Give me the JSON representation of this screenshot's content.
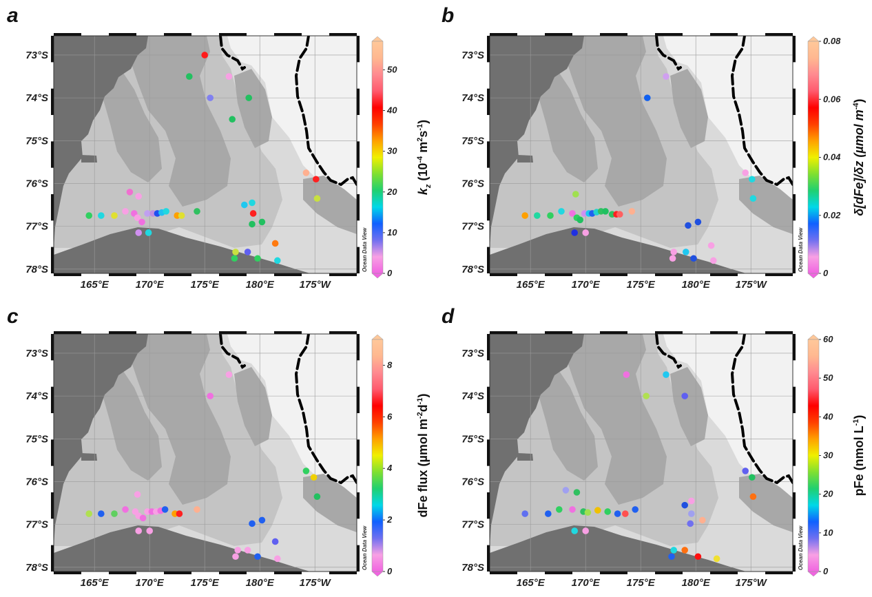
{
  "map": {
    "lat_labels": [
      "73°S",
      "74°S",
      "75°S",
      "76°S",
      "77°S",
      "78°S"
    ],
    "lon_labels": [
      "165°E",
      "170°E",
      "175°E",
      "180°E",
      "175°W"
    ],
    "watermark": "Ocean Data View"
  },
  "colors": {
    "land": "#707070",
    "shelf_dark": "#a8a8a8",
    "shelf_mid": "#c4c4c4",
    "shelf_light": "#dadada",
    "ocean": "#f2f2f2",
    "iceline": "#000000"
  },
  "colorbar_gradient": [
    "#f064e0",
    "#f8a0e4",
    "#7070f0",
    "#1060ff",
    "#00d8e8",
    "#20d070",
    "#80e030",
    "#f0f000",
    "#ffa000",
    "#ff4000",
    "#ff0000",
    "#ff5a6e",
    "#ff8a90",
    "#ffb890",
    "#ffc89a"
  ],
  "panels": [
    {
      "id": "a",
      "label": "a",
      "colorbar": {
        "title_text": "k",
        "title_sub": "z",
        "title_rest": " (10",
        "title_sup1": "-4",
        "title_mid": " m",
        "title_sup2": "2",
        "title_end": "s",
        "title_sup3": "-1",
        "title_close": ")",
        "ticks": [
          "0",
          "10",
          "20",
          "30",
          "40",
          "50"
        ],
        "tick_values": [
          0,
          10,
          20,
          30,
          40,
          50
        ],
        "min": 0,
        "max": 57
      },
      "stations": [
        {
          "lon": 175.0,
          "lat": -73.0,
          "color": "#ff1a1a"
        },
        {
          "lon": 173.6,
          "lat": -73.5,
          "color": "#22c060"
        },
        {
          "lon": 177.2,
          "lat": -73.5,
          "color": "#f8a0e4"
        },
        {
          "lon": 175.5,
          "lat": -74.0,
          "color": "#8080f0"
        },
        {
          "lon": 179.0,
          "lat": -74.0,
          "color": "#22c060"
        },
        {
          "lon": 177.5,
          "lat": -74.5,
          "color": "#22c060"
        },
        {
          "lon": 184.2,
          "lat": -75.75,
          "color": "#ffb090"
        },
        {
          "lon": 185.1,
          "lat": -75.9,
          "color": "#ff2020"
        },
        {
          "lon": 185.2,
          "lat": -76.35,
          "color": "#c8e040"
        },
        {
          "lon": 168.2,
          "lat": -76.2,
          "color": "#f070d0"
        },
        {
          "lon": 169.0,
          "lat": -76.3,
          "color": "#f8a0e4"
        },
        {
          "lon": 164.5,
          "lat": -76.75,
          "color": "#30d060"
        },
        {
          "lon": 165.6,
          "lat": -76.75,
          "color": "#20d8e0"
        },
        {
          "lon": 166.8,
          "lat": -76.75,
          "color": "#e0e030"
        },
        {
          "lon": 167.8,
          "lat": -76.65,
          "color": "#f8a0e4"
        },
        {
          "lon": 168.6,
          "lat": -76.7,
          "color": "#f070e0"
        },
        {
          "lon": 168.9,
          "lat": -76.8,
          "color": "#f8a0e4"
        },
        {
          "lon": 169.3,
          "lat": -76.9,
          "color": "#f070e0"
        },
        {
          "lon": 169.8,
          "lat": -76.7,
          "color": "#c0a0f0"
        },
        {
          "lon": 170.3,
          "lat": -76.7,
          "color": "#c090e0"
        },
        {
          "lon": 170.7,
          "lat": -76.7,
          "color": "#2050f0"
        },
        {
          "lon": 171.1,
          "lat": -76.68,
          "color": "#20c0f0"
        },
        {
          "lon": 171.5,
          "lat": -76.65,
          "color": "#20d8e0"
        },
        {
          "lon": 172.5,
          "lat": -76.75,
          "color": "#ffa000"
        },
        {
          "lon": 172.9,
          "lat": -76.75,
          "color": "#e0e030"
        },
        {
          "lon": 174.3,
          "lat": -76.65,
          "color": "#30c060"
        },
        {
          "lon": 169.0,
          "lat": -77.15,
          "color": "#d090f0"
        },
        {
          "lon": 169.9,
          "lat": -77.15,
          "color": "#20d8e0"
        },
        {
          "lon": 178.6,
          "lat": -76.5,
          "color": "#20c8f0"
        },
        {
          "lon": 179.3,
          "lat": -76.45,
          "color": "#20d8e0"
        },
        {
          "lon": 179.4,
          "lat": -76.7,
          "color": "#ff2020"
        },
        {
          "lon": 179.3,
          "lat": -76.95,
          "color": "#22c060"
        },
        {
          "lon": 180.2,
          "lat": -76.9,
          "color": "#22c060"
        },
        {
          "lon": 181.4,
          "lat": -77.4,
          "color": "#ff7a10"
        },
        {
          "lon": 177.8,
          "lat": -77.6,
          "color": "#c8e040"
        },
        {
          "lon": 178.9,
          "lat": -77.6,
          "color": "#6060f0"
        },
        {
          "lon": 177.7,
          "lat": -77.75,
          "color": "#30d060"
        },
        {
          "lon": 179.8,
          "lat": -77.75,
          "color": "#30d060"
        },
        {
          "lon": 181.6,
          "lat": -77.8,
          "color": "#20d8e0"
        }
      ]
    },
    {
      "id": "b",
      "label": "b",
      "colorbar": {
        "title_text": "δ[dFe]/δz (µmol m",
        "title_sup1": "-4",
        "title_close": ")",
        "ticks": [
          "0",
          "0.02",
          "0.04",
          "0.06",
          "0.08"
        ],
        "tick_values": [
          0,
          0.02,
          0.04,
          0.06,
          0.08
        ],
        "min": 0,
        "max": 0.08
      },
      "stations": [
        {
          "lon": 177.3,
          "lat": -73.5,
          "color": "#d0a0f0"
        },
        {
          "lon": 175.6,
          "lat": -74.0,
          "color": "#1060f0"
        },
        {
          "lon": 184.5,
          "lat": -75.75,
          "color": "#f8a0e4"
        },
        {
          "lon": 185.1,
          "lat": -75.9,
          "color": "#20d8e0"
        },
        {
          "lon": 185.2,
          "lat": -76.35,
          "color": "#20d8e0"
        },
        {
          "lon": 169.1,
          "lat": -76.25,
          "color": "#a0e050"
        },
        {
          "lon": 164.5,
          "lat": -76.75,
          "color": "#ffa000"
        },
        {
          "lon": 165.6,
          "lat": -76.75,
          "color": "#20d8a0"
        },
        {
          "lon": 166.8,
          "lat": -76.75,
          "color": "#30d060"
        },
        {
          "lon": 167.8,
          "lat": -76.65,
          "color": "#20d8e0"
        },
        {
          "lon": 168.8,
          "lat": -76.7,
          "color": "#f070e0"
        },
        {
          "lon": 169.2,
          "lat": -76.8,
          "color": "#30d060"
        },
        {
          "lon": 169.5,
          "lat": -76.85,
          "color": "#20c060"
        },
        {
          "lon": 169.9,
          "lat": -76.7,
          "color": "#d090f0"
        },
        {
          "lon": 170.3,
          "lat": -76.7,
          "color": "#20c8f0"
        },
        {
          "lon": 170.6,
          "lat": -76.7,
          "color": "#2060f0"
        },
        {
          "lon": 171.0,
          "lat": -76.67,
          "color": "#20d0d0"
        },
        {
          "lon": 171.4,
          "lat": -76.65,
          "color": "#30c060"
        },
        {
          "lon": 171.8,
          "lat": -76.65,
          "color": "#20c060"
        },
        {
          "lon": 172.4,
          "lat": -76.72,
          "color": "#30c060"
        },
        {
          "lon": 172.8,
          "lat": -76.72,
          "color": "#ff2020"
        },
        {
          "lon": 173.1,
          "lat": -76.72,
          "color": "#ff6060"
        },
        {
          "lon": 174.2,
          "lat": -76.65,
          "color": "#ffb090"
        },
        {
          "lon": 169.0,
          "lat": -77.15,
          "color": "#2030e0"
        },
        {
          "lon": 170.0,
          "lat": -77.15,
          "color": "#f8a0e4"
        },
        {
          "lon": 179.3,
          "lat": -76.98,
          "color": "#2050e0"
        },
        {
          "lon": 180.2,
          "lat": -76.9,
          "color": "#2050e0"
        },
        {
          "lon": 181.4,
          "lat": -77.45,
          "color": "#f8a0e4"
        },
        {
          "lon": 178.0,
          "lat": -77.6,
          "color": "#f8a0e4"
        },
        {
          "lon": 179.1,
          "lat": -77.6,
          "color": "#20c8f0"
        },
        {
          "lon": 177.9,
          "lat": -77.75,
          "color": "#f8a0e4"
        },
        {
          "lon": 179.8,
          "lat": -77.75,
          "color": "#2050e0"
        },
        {
          "lon": 181.6,
          "lat": -77.8,
          "color": "#f8a0e4"
        }
      ]
    },
    {
      "id": "c",
      "label": "c",
      "colorbar": {
        "title_text": "dFe flux (µmol m",
        "title_sup1": "-2",
        "title_mid": "d",
        "title_sup2": "-1",
        "title_close": ")",
        "ticks": [
          "0",
          "2",
          "4",
          "6",
          "8"
        ],
        "tick_values": [
          0,
          2,
          4,
          6,
          8
        ],
        "min": 0,
        "max": 9
      },
      "stations": [
        {
          "lon": 177.2,
          "lat": -73.5,
          "color": "#f8a0e4"
        },
        {
          "lon": 175.5,
          "lat": -74.0,
          "color": "#f070e0"
        },
        {
          "lon": 184.2,
          "lat": -75.75,
          "color": "#30d060"
        },
        {
          "lon": 184.9,
          "lat": -75.9,
          "color": "#f0d000"
        },
        {
          "lon": 185.2,
          "lat": -76.35,
          "color": "#22c060"
        },
        {
          "lon": 168.9,
          "lat": -76.3,
          "color": "#f8a0e4"
        },
        {
          "lon": 164.5,
          "lat": -76.75,
          "color": "#b0e050"
        },
        {
          "lon": 165.6,
          "lat": -76.75,
          "color": "#2060f0"
        },
        {
          "lon": 166.8,
          "lat": -76.75,
          "color": "#60d060"
        },
        {
          "lon": 167.8,
          "lat": -76.65,
          "color": "#f070e0"
        },
        {
          "lon": 168.7,
          "lat": -76.7,
          "color": "#f8a0e4"
        },
        {
          "lon": 169.0,
          "lat": -76.8,
          "color": "#f8a0e4"
        },
        {
          "lon": 169.4,
          "lat": -76.85,
          "color": "#f070e0"
        },
        {
          "lon": 169.8,
          "lat": -76.7,
          "color": "#f8a0e4"
        },
        {
          "lon": 170.2,
          "lat": -76.7,
          "color": "#f070e0"
        },
        {
          "lon": 170.6,
          "lat": -76.7,
          "color": "#f8a0e4"
        },
        {
          "lon": 171.0,
          "lat": -76.68,
          "color": "#f070e0"
        },
        {
          "lon": 171.4,
          "lat": -76.65,
          "color": "#2060f0"
        },
        {
          "lon": 172.3,
          "lat": -76.75,
          "color": "#ffa000"
        },
        {
          "lon": 172.7,
          "lat": -76.75,
          "color": "#ff2020"
        },
        {
          "lon": 174.3,
          "lat": -76.65,
          "color": "#ffb090"
        },
        {
          "lon": 169.0,
          "lat": -77.15,
          "color": "#f8a0e4"
        },
        {
          "lon": 170.0,
          "lat": -77.15,
          "color": "#f8a0e4"
        },
        {
          "lon": 179.3,
          "lat": -76.98,
          "color": "#2060f0"
        },
        {
          "lon": 180.2,
          "lat": -76.9,
          "color": "#2060f0"
        },
        {
          "lon": 181.4,
          "lat": -77.4,
          "color": "#6060f0"
        },
        {
          "lon": 178.0,
          "lat": -77.6,
          "color": "#f8a0e4"
        },
        {
          "lon": 178.9,
          "lat": -77.6,
          "color": "#f8a0e4"
        },
        {
          "lon": 177.8,
          "lat": -77.75,
          "color": "#f8a0e4"
        },
        {
          "lon": 179.8,
          "lat": -77.75,
          "color": "#2060f0"
        },
        {
          "lon": 181.6,
          "lat": -77.8,
          "color": "#f8a0e4"
        }
      ]
    },
    {
      "id": "d",
      "label": "d",
      "colorbar": {
        "title_text": "pFe (nmol L",
        "title_sup1": "-1",
        "title_close": ")",
        "ticks": [
          "0",
          "10",
          "20",
          "30",
          "40",
          "50",
          "60"
        ],
        "tick_values": [
          0,
          10,
          20,
          30,
          40,
          50,
          60
        ],
        "min": 0,
        "max": 60
      },
      "stations": [
        {
          "lon": 173.7,
          "lat": -73.5,
          "color": "#f070e0"
        },
        {
          "lon": 177.3,
          "lat": -73.5,
          "color": "#20c8f0"
        },
        {
          "lon": 175.5,
          "lat": -74.0,
          "color": "#b0e050"
        },
        {
          "lon": 179.0,
          "lat": -74.0,
          "color": "#6060f0"
        },
        {
          "lon": 184.5,
          "lat": -75.75,
          "color": "#6060f0"
        },
        {
          "lon": 185.1,
          "lat": -75.9,
          "color": "#22c060"
        },
        {
          "lon": 185.2,
          "lat": -76.35,
          "color": "#ff7010"
        },
        {
          "lon": 168.2,
          "lat": -76.2,
          "color": "#a0a0f0"
        },
        {
          "lon": 169.2,
          "lat": -76.25,
          "color": "#30c060"
        },
        {
          "lon": 164.5,
          "lat": -76.75,
          "color": "#6070f0"
        },
        {
          "lon": 166.6,
          "lat": -76.75,
          "color": "#2060f0"
        },
        {
          "lon": 167.6,
          "lat": -76.65,
          "color": "#30d060"
        },
        {
          "lon": 168.8,
          "lat": -76.65,
          "color": "#f070e0"
        },
        {
          "lon": 169.8,
          "lat": -76.7,
          "color": "#30c060"
        },
        {
          "lon": 170.2,
          "lat": -76.72,
          "color": "#a0e050"
        },
        {
          "lon": 171.1,
          "lat": -76.67,
          "color": "#f0c000"
        },
        {
          "lon": 172.0,
          "lat": -76.7,
          "color": "#30d060"
        },
        {
          "lon": 172.9,
          "lat": -76.75,
          "color": "#2060f0"
        },
        {
          "lon": 173.6,
          "lat": -76.75,
          "color": "#ff5050"
        },
        {
          "lon": 174.5,
          "lat": -76.65,
          "color": "#2060f0"
        },
        {
          "lon": 169.0,
          "lat": -77.15,
          "color": "#20d8e0"
        },
        {
          "lon": 170.0,
          "lat": -77.15,
          "color": "#f8a0e4"
        },
        {
          "lon": 179.0,
          "lat": -76.55,
          "color": "#2050e0"
        },
        {
          "lon": 179.6,
          "lat": -76.45,
          "color": "#f8a0e4"
        },
        {
          "lon": 179.6,
          "lat": -76.75,
          "color": "#a0a0f0"
        },
        {
          "lon": 179.5,
          "lat": -76.98,
          "color": "#7070f0"
        },
        {
          "lon": 180.6,
          "lat": -76.9,
          "color": "#ffb090"
        },
        {
          "lon": 178.0,
          "lat": -77.6,
          "color": "#20d8e0"
        },
        {
          "lon": 179.0,
          "lat": -77.6,
          "color": "#ff7010"
        },
        {
          "lon": 177.8,
          "lat": -77.75,
          "color": "#2060f0"
        },
        {
          "lon": 180.2,
          "lat": -77.75,
          "color": "#ff1010"
        },
        {
          "lon": 181.9,
          "lat": -77.8,
          "color": "#f0e030"
        }
      ]
    }
  ]
}
